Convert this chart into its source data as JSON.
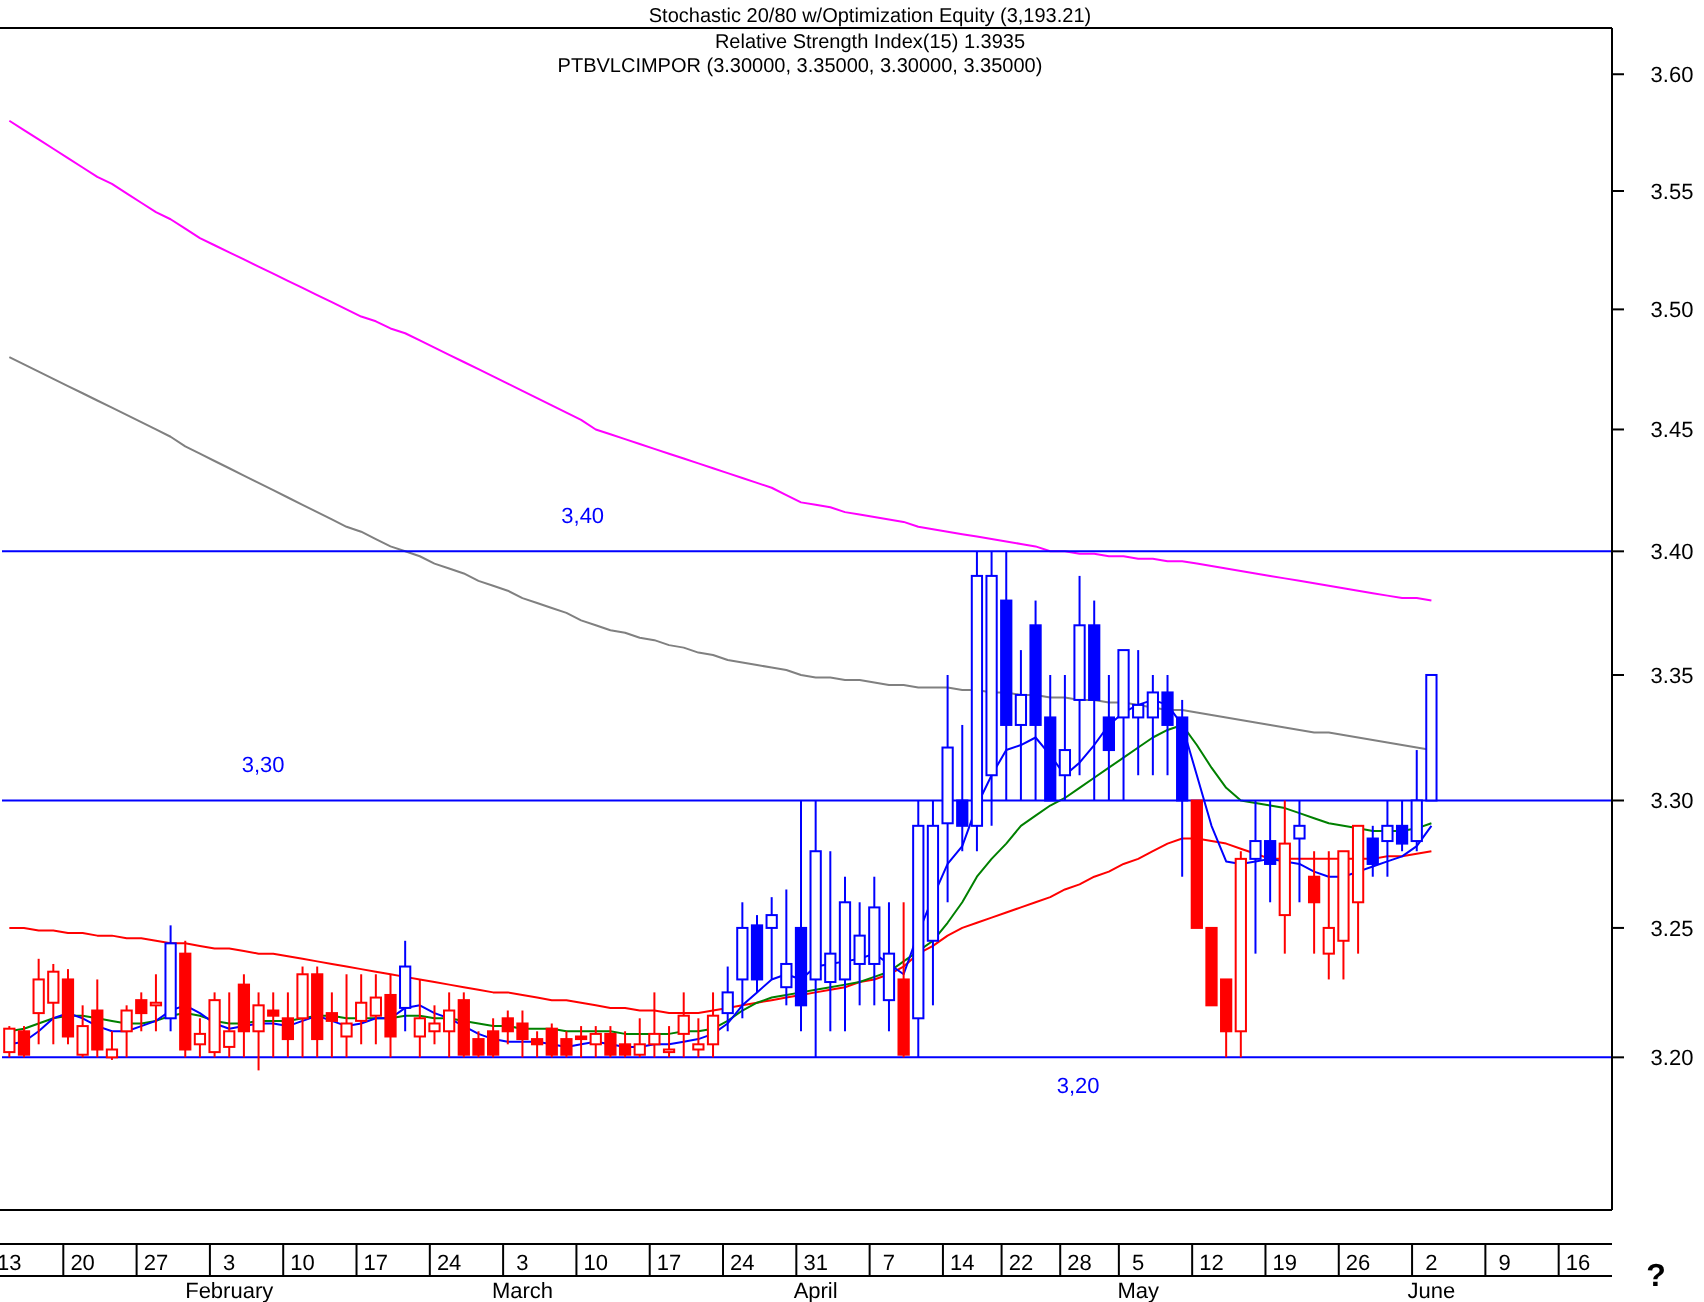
{
  "chart_data": {
    "type": "candlestick",
    "title": "Stochastic 20/80 w/Optimization Equity (3,193.21)",
    "subtitle": "Relative Strength Index(15) 1.3935",
    "annotations": [
      "PTBVLCIMPOR (3.30000, 3.35000, 3.30000, 3.35000)",
      "?"
    ],
    "categories": [
      "13",
      null,
      null,
      null,
      null,
      "20",
      null,
      null,
      null,
      null,
      "27",
      null,
      null,
      null,
      null,
      "3\nFebruary",
      null,
      null,
      null,
      null,
      "10",
      null,
      null,
      null,
      null,
      "17",
      null,
      null,
      null,
      null,
      "24",
      null,
      null,
      null,
      null,
      "3\nMarch",
      null,
      null,
      null,
      null,
      "10",
      null,
      null,
      null,
      null,
      "17",
      null,
      null,
      null,
      null,
      "24",
      null,
      null,
      null,
      null,
      "31\nApril",
      null,
      null,
      null,
      null,
      "7",
      null,
      null,
      null,
      null,
      "14",
      null,
      null,
      null,
      "22",
      null,
      null,
      null,
      "28",
      null,
      null,
      null,
      "5\nMay",
      null,
      null,
      null,
      null,
      "12",
      null,
      null,
      null,
      null,
      "19",
      null,
      null,
      null,
      null,
      "26",
      null,
      null,
      null,
      null,
      "2\nJune",
      null,
      null,
      null,
      null,
      "9",
      null,
      null,
      null,
      null,
      "16",
      null
    ],
    "ohlc": [
      [
        3.202,
        3.212,
        3.2,
        3.211
      ],
      [
        3.21,
        3.212,
        3.2,
        3.201
      ],
      [
        3.217,
        3.238,
        3.205,
        3.23
      ],
      [
        3.221,
        3.236,
        3.205,
        3.233
      ],
      [
        3.23,
        3.234,
        3.205,
        3.208
      ],
      [
        3.201,
        3.22,
        3.2,
        3.212
      ],
      [
        3.218,
        3.23,
        3.2,
        3.203
      ],
      [
        3.2,
        3.21,
        3.199,
        3.203
      ],
      [
        3.21,
        3.22,
        3.2,
        3.218
      ],
      [
        3.222,
        3.225,
        3.21,
        3.217
      ],
      [
        3.22,
        3.232,
        3.21,
        3.221
      ],
      [
        3.215,
        3.251,
        3.21,
        3.244
      ],
      [
        3.24,
        3.245,
        3.2,
        3.203
      ],
      [
        3.205,
        3.215,
        3.2,
        3.209
      ],
      [
        3.202,
        3.225,
        3.2,
        3.222
      ],
      [
        3.204,
        3.225,
        3.2,
        3.21
      ],
      [
        3.228,
        3.232,
        3.2,
        3.21
      ],
      [
        3.21,
        3.225,
        3.195,
        3.22
      ],
      [
        3.218,
        3.225,
        3.2,
        3.216
      ],
      [
        3.215,
        3.225,
        3.2,
        3.207
      ],
      [
        3.215,
        3.235,
        3.2,
        3.232
      ],
      [
        3.232,
        3.235,
        3.2,
        3.207
      ],
      [
        3.217,
        3.225,
        3.2,
        3.214
      ],
      [
        3.208,
        3.232,
        3.2,
        3.213
      ],
      [
        3.214,
        3.232,
        3.205,
        3.221
      ],
      [
        3.216,
        3.232,
        3.205,
        3.223
      ],
      [
        3.224,
        3.232,
        3.2,
        3.208
      ],
      [
        3.219,
        3.245,
        3.21,
        3.235
      ],
      [
        3.208,
        3.23,
        3.2,
        3.215
      ],
      [
        3.21,
        3.22,
        3.205,
        3.213
      ],
      [
        3.21,
        3.225,
        3.2,
        3.218
      ],
      [
        3.222,
        3.225,
        3.2,
        3.201
      ],
      [
        3.207,
        3.21,
        3.2,
        3.201
      ],
      [
        3.21,
        3.215,
        3.2,
        3.201
      ],
      [
        3.215,
        3.218,
        3.205,
        3.21
      ],
      [
        3.213,
        3.218,
        3.2,
        3.207
      ],
      [
        3.207,
        3.21,
        3.2,
        3.205
      ],
      [
        3.211,
        3.213,
        3.2,
        3.201
      ],
      [
        3.207,
        3.21,
        3.2,
        3.201
      ],
      [
        3.208,
        3.212,
        3.2,
        3.207
      ],
      [
        3.205,
        3.212,
        3.2,
        3.209
      ],
      [
        3.209,
        3.212,
        3.2,
        3.201
      ],
      [
        3.205,
        3.21,
        3.2,
        3.201
      ],
      [
        3.201,
        3.215,
        3.2,
        3.205
      ],
      [
        3.205,
        3.225,
        3.2,
        3.209
      ],
      [
        3.202,
        3.212,
        3.2,
        3.203
      ],
      [
        3.209,
        3.225,
        3.2,
        3.216
      ],
      [
        3.203,
        3.215,
        3.2,
        3.205
      ],
      [
        3.205,
        3.225,
        3.2,
        3.216
      ],
      [
        3.217,
        3.235,
        3.21,
        3.225
      ],
      [
        3.23,
        3.26,
        3.215,
        3.25
      ],
      [
        3.251,
        3.255,
        3.225,
        3.23
      ],
      [
        3.25,
        3.262,
        3.23,
        3.255
      ],
      [
        3.227,
        3.265,
        3.22,
        3.236
      ],
      [
        3.25,
        3.3,
        3.21,
        3.22
      ],
      [
        3.23,
        3.3,
        3.2,
        3.28
      ],
      [
        3.229,
        3.28,
        3.21,
        3.24
      ],
      [
        3.23,
        3.27,
        3.21,
        3.26
      ],
      [
        3.236,
        3.26,
        3.22,
        3.247
      ],
      [
        3.236,
        3.27,
        3.22,
        3.258
      ],
      [
        3.222,
        3.26,
        3.21,
        3.24
      ],
      [
        3.23,
        3.26,
        3.2,
        3.201
      ],
      [
        3.215,
        3.3,
        3.2,
        3.29
      ],
      [
        3.245,
        3.3,
        3.22,
        3.29
      ],
      [
        3.291,
        3.35,
        3.26,
        3.321
      ],
      [
        3.3,
        3.33,
        3.28,
        3.29
      ],
      [
        3.29,
        3.4,
        3.28,
        3.39
      ],
      [
        3.31,
        3.4,
        3.29,
        3.39
      ],
      [
        3.38,
        3.4,
        3.3,
        3.33
      ],
      [
        3.33,
        3.36,
        3.3,
        3.342
      ],
      [
        3.37,
        3.38,
        3.3,
        3.33
      ],
      [
        3.333,
        3.35,
        3.3,
        3.3
      ],
      [
        3.31,
        3.35,
        3.3,
        3.32
      ],
      [
        3.34,
        3.39,
        3.31,
        3.37
      ],
      [
        3.37,
        3.38,
        3.3,
        3.34
      ],
      [
        3.333,
        3.35,
        3.3,
        3.32
      ],
      [
        3.333,
        3.36,
        3.3,
        3.36
      ],
      [
        3.333,
        3.36,
        3.31,
        3.338
      ],
      [
        3.333,
        3.35,
        3.31,
        3.343
      ],
      [
        3.343,
        3.35,
        3.31,
        3.33
      ],
      [
        3.333,
        3.34,
        3.27,
        3.3
      ],
      [
        3.3,
        3.3,
        3.25,
        3.25
      ],
      [
        3.25,
        3.25,
        3.22,
        3.22
      ],
      [
        3.23,
        3.23,
        3.2,
        3.21
      ],
      [
        3.21,
        3.28,
        3.2,
        3.277
      ],
      [
        3.277,
        3.3,
        3.24,
        3.284
      ],
      [
        3.284,
        3.3,
        3.26,
        3.275
      ],
      [
        3.255,
        3.3,
        3.24,
        3.283
      ],
      [
        3.285,
        3.3,
        3.26,
        3.29
      ],
      [
        3.27,
        3.28,
        3.24,
        3.26
      ],
      [
        3.24,
        3.28,
        3.23,
        3.25
      ],
      [
        3.245,
        3.28,
        3.23,
        3.28
      ],
      [
        3.26,
        3.29,
        3.24,
        3.29
      ],
      [
        3.285,
        3.29,
        3.27,
        3.275
      ],
      [
        3.284,
        3.3,
        3.27,
        3.29
      ],
      [
        3.29,
        3.3,
        3.28,
        3.283
      ],
      [
        3.284,
        3.32,
        3.28,
        3.3
      ],
      [
        3.3,
        3.35,
        3.3,
        3.35
      ],
      null,
      null,
      null,
      null,
      null,
      null,
      null,
      null,
      null,
      null,
      null
    ],
    "colors": [
      "#ff0000",
      "#ff0000",
      "#ff0000",
      "#ff0000",
      "#ff0000",
      "#ff0000",
      "#ff0000",
      "#ff0000",
      "#ff0000",
      "#ff0000",
      "#ff0000",
      "#0000ff",
      "#ff0000",
      "#ff0000",
      "#ff0000",
      "#ff0000",
      "#ff0000",
      "#ff0000",
      "#ff0000",
      "#ff0000",
      "#ff0000",
      "#ff0000",
      "#ff0000",
      "#ff0000",
      "#ff0000",
      "#ff0000",
      "#ff0000",
      "#0000ff",
      "#ff0000",
      "#ff0000",
      "#ff0000",
      "#ff0000",
      "#ff0000",
      "#ff0000",
      "#ff0000",
      "#ff0000",
      "#ff0000",
      "#ff0000",
      "#ff0000",
      "#ff0000",
      "#ff0000",
      "#ff0000",
      "#ff0000",
      "#ff0000",
      "#ff0000",
      "#ff0000",
      "#ff0000",
      "#ff0000",
      "#ff0000",
      "#0000ff",
      "#0000ff",
      "#0000ff",
      "#0000ff",
      "#0000ff",
      "#0000ff",
      "#0000ff",
      "#0000ff",
      "#0000ff",
      "#0000ff",
      "#0000ff",
      "#0000ff",
      "#ff0000",
      "#0000ff",
      "#0000ff",
      "#0000ff",
      "#0000ff",
      "#0000ff",
      "#0000ff",
      "#0000ff",
      "#0000ff",
      "#0000ff",
      "#0000ff",
      "#0000ff",
      "#0000ff",
      "#0000ff",
      "#0000ff",
      "#0000ff",
      "#0000ff",
      "#0000ff",
      "#0000ff",
      "#0000ff",
      "#ff0000",
      "#ff0000",
      "#ff0000",
      "#ff0000",
      "#0000ff",
      "#0000ff",
      "#ff0000",
      "#0000ff",
      "#ff0000",
      "#ff0000",
      "#ff0000",
      "#ff0000",
      "#0000ff",
      "#0000ff",
      "#0000ff",
      "#0000ff",
      "#0000ff",
      null,
      null,
      null,
      null,
      null,
      null,
      null,
      null,
      null,
      null,
      null
    ],
    "series": [
      {
        "type": "line",
        "color": "#ff00ff",
        "values": [
          3.58,
          3.576,
          3.572,
          3.568,
          3.564,
          3.56,
          3.556,
          3.553,
          3.549,
          3.545,
          3.541,
          3.538,
          3.534,
          3.53,
          3.527,
          3.524,
          3.521,
          3.518,
          3.515,
          3.512,
          3.509,
          3.506,
          3.503,
          3.5,
          3.497,
          3.495,
          3.492,
          3.49,
          3.487,
          3.484,
          3.481,
          3.478,
          3.475,
          3.472,
          3.469,
          3.466,
          3.463,
          3.46,
          3.457,
          3.454,
          3.45,
          3.448,
          3.446,
          3.444,
          3.442,
          3.44,
          3.438,
          3.436,
          3.434,
          3.432,
          3.43,
          3.428,
          3.426,
          3.423,
          3.42,
          3.419,
          3.418,
          3.416,
          3.415,
          3.414,
          3.413,
          3.412,
          3.41,
          3.409,
          3.408,
          3.407,
          3.406,
          3.405,
          3.404,
          3.403,
          3.402,
          3.4,
          3.4,
          3.399,
          3.399,
          3.398,
          3.398,
          3.397,
          3.397,
          3.396,
          3.396,
          3.395,
          3.394,
          3.393,
          3.392,
          3.391,
          3.39,
          3.389,
          3.388,
          3.387,
          3.386,
          3.385,
          3.384,
          3.383,
          3.382,
          3.381,
          3.381,
          3.38,
          null,
          null,
          null,
          null,
          null,
          null,
          null,
          null,
          null,
          null,
          null
        ]
      },
      {
        "type": "line",
        "color": "#808080",
        "values": [
          3.48,
          3.477,
          3.474,
          3.471,
          3.468,
          3.465,
          3.462,
          3.459,
          3.456,
          3.453,
          3.45,
          3.447,
          3.443,
          3.44,
          3.437,
          3.434,
          3.431,
          3.428,
          3.425,
          3.422,
          3.419,
          3.416,
          3.413,
          3.41,
          3.408,
          3.405,
          3.402,
          3.4,
          3.398,
          3.395,
          3.393,
          3.391,
          3.388,
          3.386,
          3.384,
          3.381,
          3.379,
          3.377,
          3.375,
          3.372,
          3.37,
          3.368,
          3.367,
          3.365,
          3.364,
          3.362,
          3.361,
          3.359,
          3.358,
          3.356,
          3.355,
          3.354,
          3.353,
          3.352,
          3.35,
          3.349,
          3.349,
          3.348,
          3.348,
          3.347,
          3.346,
          3.346,
          3.345,
          3.345,
          3.345,
          3.344,
          3.344,
          3.343,
          3.343,
          3.342,
          3.342,
          3.341,
          3.341,
          3.34,
          3.34,
          3.339,
          3.339,
          3.338,
          3.337,
          3.336,
          3.336,
          3.335,
          3.334,
          3.333,
          3.332,
          3.331,
          3.33,
          3.329,
          3.328,
          3.327,
          3.327,
          3.326,
          3.325,
          3.324,
          3.323,
          3.322,
          3.321,
          3.32,
          null,
          null,
          null,
          null,
          null,
          null,
          null,
          null,
          null,
          null,
          null
        ]
      },
      {
        "type": "line",
        "color": "#ff0000",
        "values": [
          3.25,
          3.25,
          3.249,
          3.249,
          3.248,
          3.248,
          3.247,
          3.247,
          3.246,
          3.246,
          3.245,
          3.244,
          3.244,
          3.243,
          3.242,
          3.242,
          3.241,
          3.24,
          3.24,
          3.239,
          3.238,
          3.237,
          3.236,
          3.235,
          3.234,
          3.233,
          3.232,
          3.231,
          3.23,
          3.229,
          3.228,
          3.227,
          3.226,
          3.225,
          3.225,
          3.224,
          3.223,
          3.222,
          3.222,
          3.221,
          3.22,
          3.219,
          3.219,
          3.218,
          3.218,
          3.217,
          3.217,
          3.217,
          3.218,
          3.219,
          3.22,
          3.221,
          3.222,
          3.223,
          3.224,
          3.225,
          3.226,
          3.227,
          3.229,
          3.23,
          3.232,
          3.235,
          3.24,
          3.243,
          3.247,
          3.25,
          3.252,
          3.254,
          3.256,
          3.258,
          3.26,
          3.262,
          3.265,
          3.267,
          3.27,
          3.272,
          3.275,
          3.277,
          3.28,
          3.283,
          3.285,
          3.285,
          3.284,
          3.283,
          3.281,
          3.279,
          3.277,
          3.277,
          3.277,
          3.277,
          3.277,
          3.277,
          3.277,
          3.277,
          3.278,
          3.278,
          3.279,
          3.28,
          null,
          null,
          null,
          null,
          null,
          null,
          null,
          null,
          null,
          null,
          null
        ]
      },
      {
        "type": "line",
        "color": "#008000",
        "values": [
          3.21,
          3.211,
          3.213,
          3.215,
          3.216,
          3.216,
          3.215,
          3.214,
          3.213,
          3.213,
          3.214,
          3.216,
          3.217,
          3.216,
          3.214,
          3.213,
          3.213,
          3.214,
          3.214,
          3.214,
          3.215,
          3.216,
          3.216,
          3.215,
          3.215,
          3.215,
          3.215,
          3.216,
          3.216,
          3.215,
          3.215,
          3.214,
          3.213,
          3.212,
          3.212,
          3.211,
          3.211,
          3.211,
          3.21,
          3.21,
          3.21,
          3.21,
          3.209,
          3.209,
          3.209,
          3.209,
          3.21,
          3.21,
          3.211,
          3.214,
          3.218,
          3.221,
          3.223,
          3.224,
          3.225,
          3.226,
          3.227,
          3.228,
          3.229,
          3.231,
          3.233,
          3.237,
          3.241,
          3.245,
          3.252,
          3.26,
          3.27,
          3.277,
          3.283,
          3.29,
          3.294,
          3.298,
          3.301,
          3.305,
          3.309,
          3.313,
          3.317,
          3.321,
          3.325,
          3.328,
          3.33,
          3.322,
          3.313,
          3.305,
          3.3,
          3.299,
          3.298,
          3.297,
          3.295,
          3.293,
          3.291,
          3.29,
          3.289,
          3.288,
          3.288,
          3.288,
          3.289,
          3.291,
          null,
          null,
          null,
          null,
          null,
          null,
          null,
          null,
          null,
          null,
          null
        ]
      },
      {
        "type": "line",
        "color": "#0000ff",
        "values": [
          3.205,
          3.206,
          3.21,
          3.215,
          3.217,
          3.215,
          3.212,
          3.21,
          3.21,
          3.212,
          3.214,
          3.218,
          3.22,
          3.217,
          3.213,
          3.211,
          3.212,
          3.213,
          3.213,
          3.212,
          3.214,
          3.216,
          3.214,
          3.212,
          3.213,
          3.215,
          3.215,
          3.219,
          3.22,
          3.217,
          3.215,
          3.212,
          3.209,
          3.207,
          3.206,
          3.206,
          3.206,
          3.205,
          3.204,
          3.205,
          3.206,
          3.205,
          3.204,
          3.204,
          3.205,
          3.205,
          3.206,
          3.207,
          3.209,
          3.213,
          3.22,
          3.225,
          3.23,
          3.232,
          3.23,
          3.235,
          3.236,
          3.237,
          3.238,
          3.24,
          3.236,
          3.232,
          3.248,
          3.262,
          3.275,
          3.282,
          3.298,
          3.31,
          3.32,
          3.322,
          3.325,
          3.318,
          3.31,
          3.315,
          3.322,
          3.33,
          3.335,
          3.338,
          3.34,
          3.338,
          3.33,
          3.31,
          3.29,
          3.276,
          3.275,
          3.276,
          3.277,
          3.276,
          3.275,
          3.272,
          3.27,
          3.27,
          3.272,
          3.274,
          3.276,
          3.278,
          3.282,
          3.29,
          null,
          null,
          null,
          null,
          null,
          null,
          null,
          null,
          null,
          null,
          null
        ]
      }
    ],
    "ref_lines": [
      {
        "axis": "y",
        "value": 3.4,
        "label": "3,40",
        "color": "#0000ff"
      },
      {
        "axis": "y",
        "value": 3.3,
        "label": "3,30",
        "color": "#0000ff"
      },
      {
        "axis": "y",
        "value": 3.2,
        "label": "3,20",
        "color": "#0000ff"
      }
    ],
    "log": true,
    "ylim": [
      3.142,
      3.62
    ],
    "yticks": [
      {
        "value": 3.2,
        "label": "3.20"
      },
      {
        "value": 3.25,
        "label": "3.25"
      },
      {
        "value": 3.3,
        "label": "3.30"
      },
      {
        "value": 3.35,
        "label": "3.35"
      },
      {
        "value": 3.4,
        "label": "3.40"
      },
      {
        "value": 3.45,
        "label": "3.45"
      },
      {
        "value": 3.5,
        "label": "3.50"
      },
      {
        "value": 3.55,
        "label": "3.55"
      },
      {
        "value": 3.6,
        "label": "3.60"
      }
    ],
    "grid": false
  }
}
